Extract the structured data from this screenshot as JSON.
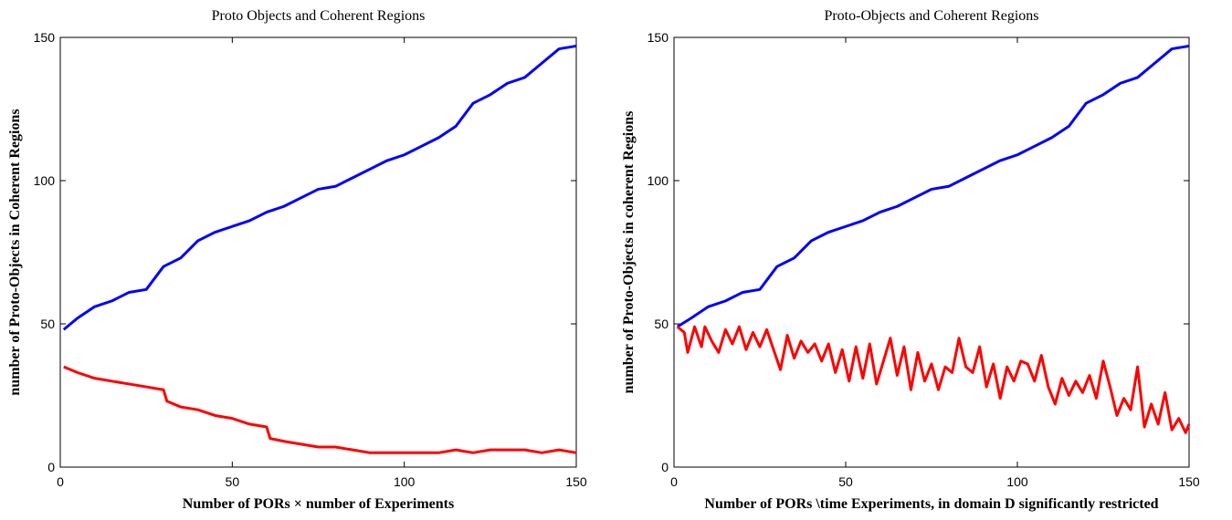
{
  "chart_data": [
    {
      "type": "line",
      "title": "Proto Objects and Coherent Regions",
      "x_label": "Number of PORs × number of  Experiments",
      "y_label": "number of Proto-Objects in Coherent Regions",
      "xlim": [
        0,
        150
      ],
      "ylim": [
        0,
        150
      ],
      "xticks": [
        0,
        50,
        100,
        150
      ],
      "yticks": [
        0,
        50,
        100,
        150
      ],
      "series": [
        {
          "color": "#0000ff",
          "x": [
            1,
            5,
            10,
            15,
            20,
            25,
            30,
            35,
            40,
            45,
            50,
            55,
            60,
            65,
            70,
            75,
            80,
            85,
            90,
            95,
            100,
            105,
            110,
            115,
            120,
            125,
            130,
            135,
            140,
            145,
            150
          ],
          "values": [
            48,
            52,
            56,
            58,
            61,
            62,
            70,
            73,
            79,
            82,
            84,
            86,
            89,
            91,
            94,
            97,
            98,
            101,
            104,
            107,
            109,
            112,
            115,
            119,
            127,
            130,
            134,
            136,
            141,
            146,
            147
          ]
        },
        {
          "color": "#ff0000",
          "x": [
            1,
            5,
            10,
            15,
            20,
            25,
            30,
            31,
            35,
            40,
            45,
            50,
            55,
            60,
            61,
            65,
            70,
            75,
            80,
            85,
            90,
            95,
            100,
            105,
            110,
            115,
            120,
            125,
            130,
            135,
            140,
            145,
            150
          ],
          "values": [
            35,
            33,
            31,
            30,
            29,
            28,
            27,
            23,
            21,
            20,
            18,
            17,
            15,
            14,
            10,
            9,
            8,
            7,
            7,
            6,
            5,
            5,
            5,
            5,
            5,
            6,
            5,
            6,
            6,
            6,
            5,
            6,
            5
          ]
        }
      ]
    },
    {
      "type": "line",
      "title": "Proto-Objects and Coherent Regions",
      "x_label": "Number of PORs \\time Experiments, in  domain D significantly restricted",
      "y_label": "number of Proto-Objects in coherent Regions",
      "xlim": [
        0,
        150
      ],
      "ylim": [
        0,
        150
      ],
      "xticks": [
        0,
        50,
        100,
        150
      ],
      "yticks": [
        0,
        50,
        100,
        150
      ],
      "series": [
        {
          "color": "#0000ff",
          "x": [
            1,
            5,
            10,
            15,
            20,
            25,
            30,
            35,
            40,
            45,
            50,
            55,
            60,
            65,
            70,
            75,
            80,
            85,
            90,
            95,
            100,
            105,
            110,
            115,
            120,
            125,
            130,
            135,
            140,
            145,
            150
          ],
          "values": [
            49,
            52,
            56,
            58,
            61,
            62,
            70,
            73,
            79,
            82,
            84,
            86,
            89,
            91,
            94,
            97,
            98,
            101,
            104,
            107,
            109,
            112,
            115,
            119,
            127,
            130,
            134,
            136,
            141,
            146,
            147
          ]
        },
        {
          "color": "#ff0000",
          "x": [
            1,
            3,
            4,
            6,
            8,
            9,
            11,
            13,
            15,
            17,
            19,
            21,
            23,
            25,
            27,
            29,
            31,
            33,
            35,
            37,
            39,
            41,
            43,
            45,
            47,
            49,
            51,
            53,
            55,
            57,
            59,
            61,
            63,
            65,
            67,
            69,
            71,
            73,
            75,
            77,
            79,
            81,
            83,
            85,
            87,
            89,
            91,
            93,
            95,
            97,
            99,
            101,
            103,
            105,
            107,
            109,
            111,
            113,
            115,
            117,
            119,
            121,
            123,
            125,
            127,
            129,
            131,
            133,
            135,
            137,
            139,
            141,
            143,
            145,
            147,
            149,
            150
          ],
          "values": [
            49,
            47,
            40,
            49,
            42,
            49,
            44,
            40,
            48,
            43,
            49,
            41,
            47,
            42,
            48,
            41,
            34,
            46,
            38,
            44,
            40,
            43,
            37,
            43,
            33,
            41,
            30,
            42,
            31,
            43,
            29,
            37,
            45,
            32,
            42,
            27,
            40,
            30,
            36,
            27,
            35,
            33,
            45,
            35,
            33,
            42,
            28,
            36,
            24,
            35,
            30,
            37,
            36,
            30,
            39,
            28,
            22,
            31,
            25,
            30,
            26,
            32,
            24,
            37,
            28,
            18,
            24,
            20,
            35,
            14,
            22,
            15,
            26,
            13,
            17,
            12,
            15
          ]
        }
      ]
    }
  ]
}
